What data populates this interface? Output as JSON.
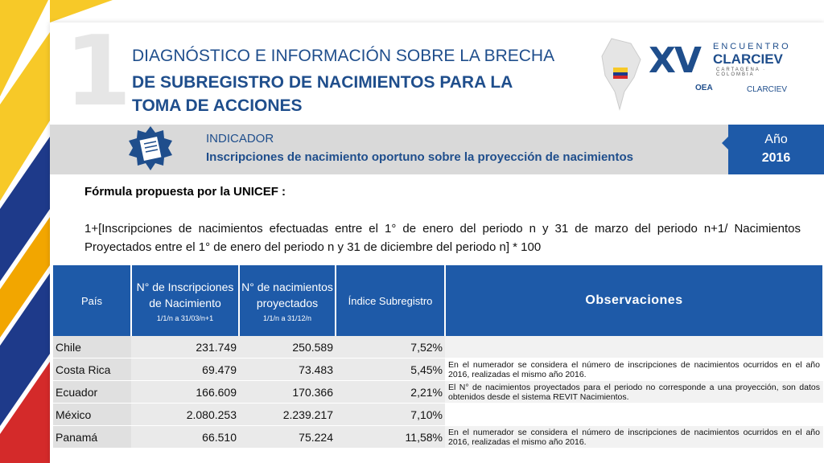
{
  "slide": {
    "number": "1",
    "title_line1": "DIAGNÓSTICO E INFORMACIÓN SOBRE LA BRECHA",
    "title_line2": "DE SUBREGISTRO DE NACIMIENTOS PARA LA TOMA DE ACCIONES"
  },
  "logo": {
    "roman": "XV",
    "encuentro": "ENCUENTRO",
    "clarciev": "CLARCIEV",
    "city": "CARTAGENA · COLOMBIA",
    "partner1": "OEA",
    "partner2": "CLARCIEV"
  },
  "indicator": {
    "label": "INDICADOR",
    "text": "Inscripciones de nacimiento oportuno sobre la proyección de nacimientos"
  },
  "year": {
    "label": "Año",
    "value": "2016"
  },
  "formula": {
    "title": "Fórmula propuesta por la UNICEF :",
    "text": "1+[Inscripciones de nacimientos efectuadas entre el 1° de enero del periodo n y 31 de marzo del periodo n+1/ Nacimientos Proyectados entre el 1° de enero del periodo n y 31 de diciembre del periodo n] * 100"
  },
  "table": {
    "headers": {
      "pais": "País",
      "inscripciones": "N° de Inscripciones de Nacimiento",
      "inscripciones_sub": "1/1/n a 31/03/n+1",
      "proyectados": "N° de nacimientos proyectados",
      "proyectados_sub": "1/1/n a 31/12/n",
      "indice": "Índice Subregistro",
      "observaciones": "Observaciones"
    },
    "rows": [
      {
        "pais": "Chile",
        "inscripciones": "231.749",
        "proyectados": "250.589",
        "indice": "7,52%",
        "obs": ""
      },
      {
        "pais": "Costa Rica",
        "inscripciones": "69.479",
        "proyectados": "73.483",
        "indice": "5,45%",
        "obs": "En el numerador se considera el número de inscripciones de nacimientos ocurridos en el año 2016, realizadas el mismo año 2016."
      },
      {
        "pais": "Ecuador",
        "inscripciones": "166.609",
        "proyectados": "170.366",
        "indice": "2,21%",
        "obs": "El N° de nacimientos proyectados para el periodo no corresponde a una proyección, son datos obtenidos desde el sistema REVIT Nacimientos."
      },
      {
        "pais": "México",
        "inscripciones": "2.080.253",
        "proyectados": "2.239.217",
        "indice": "7,10%",
        "obs": ""
      },
      {
        "pais": "Panamá",
        "inscripciones": "66.510",
        "proyectados": "75.224",
        "indice": "11,58%",
        "obs": "En el numerador se considera el número de inscripciones de nacimientos ocurridos en el año 2016, realizadas el mismo año 2016."
      }
    ]
  }
}
